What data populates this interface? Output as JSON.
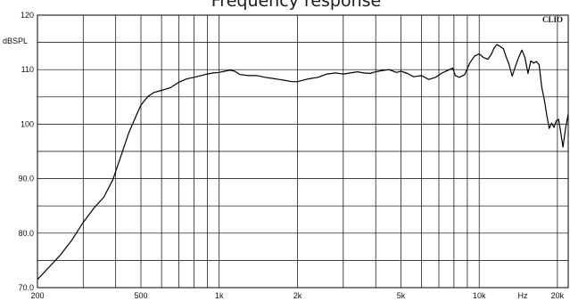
{
  "chart_data": {
    "type": "line",
    "title": "Frequency response",
    "ylabel": "dBSPL",
    "xlabel": "Hz",
    "brand": "CLIO",
    "x_scale": "log",
    "xlim": [
      200,
      22000
    ],
    "ylim": [
      70,
      120
    ],
    "grid": true,
    "x_ticks": [
      {
        "value": 200,
        "label": "200"
      },
      {
        "value": 500,
        "label": "500"
      },
      {
        "value": 1000,
        "label": "1k"
      },
      {
        "value": 2000,
        "label": "2k"
      },
      {
        "value": 5000,
        "label": "5k"
      },
      {
        "value": 10000,
        "label": "10k"
      },
      {
        "value": 20000,
        "label": "20k"
      }
    ],
    "x_gridlines": [
      200,
      300,
      400,
      500,
      600,
      700,
      800,
      900,
      1000,
      2000,
      3000,
      4000,
      5000,
      6000,
      7000,
      8000,
      9000,
      10000,
      20000
    ],
    "y_ticks": [
      {
        "value": 70,
        "label": "70.0"
      },
      {
        "value": 80,
        "label": "80.0"
      },
      {
        "value": 90,
        "label": "90.0"
      },
      {
        "value": 100,
        "label": "100"
      },
      {
        "value": 110,
        "label": "110"
      },
      {
        "value": 120,
        "label": "120"
      }
    ],
    "y_gridlines": [
      70,
      75,
      80,
      85,
      90,
      95,
      100,
      105,
      110,
      115,
      120
    ],
    "series": [
      {
        "color": "#000000",
        "x": [
          200,
          220,
          245,
          270,
          300,
          330,
          360,
          390,
          420,
          450,
          480,
          500,
          530,
          560,
          600,
          650,
          700,
          750,
          800,
          850,
          900,
          950,
          1000,
          1050,
          1100,
          1150,
          1200,
          1300,
          1400,
          1500,
          1600,
          1700,
          1800,
          1900,
          2000,
          2200,
          2400,
          2600,
          2800,
          3000,
          3200,
          3400,
          3600,
          3800,
          4000,
          4200,
          4500,
          4800,
          5000,
          5300,
          5600,
          6000,
          6400,
          6800,
          7200,
          7600,
          7900,
          8100,
          8400,
          8800,
          9200,
          9600,
          10000,
          10400,
          10800,
          11100,
          11400,
          11700,
          12000,
          12400,
          12700,
          13000,
          13400,
          13800,
          14200,
          14600,
          15000,
          15400,
          15800,
          16200,
          16600,
          17000,
          17400,
          17800,
          18200,
          18600,
          19000,
          19400,
          19800,
          20200,
          20600,
          21000,
          21500,
          22000
        ],
        "y": [
          71.5,
          73.6,
          76.0,
          78.6,
          82.0,
          84.6,
          86.6,
          89.8,
          94.3,
          98.5,
          101.6,
          103.5,
          105.0,
          105.8,
          106.2,
          106.7,
          107.7,
          108.3,
          108.6,
          108.9,
          109.2,
          109.4,
          109.5,
          109.7,
          109.9,
          109.7,
          109.1,
          108.9,
          108.9,
          108.6,
          108.4,
          108.2,
          108.0,
          107.8,
          107.8,
          108.3,
          108.6,
          109.2,
          109.4,
          109.2,
          109.4,
          109.6,
          109.4,
          109.3,
          109.6,
          109.8,
          110.0,
          109.5,
          109.7,
          109.3,
          108.7,
          108.9,
          108.2,
          108.6,
          109.4,
          109.9,
          110.3,
          108.9,
          108.6,
          109.1,
          111.2,
          112.5,
          112.9,
          112.2,
          111.9,
          112.7,
          113.9,
          114.6,
          114.3,
          113.8,
          112.3,
          111.1,
          108.8,
          110.7,
          112.3,
          113.6,
          112.2,
          109.3,
          111.6,
          111.2,
          111.5,
          110.9,
          106.8,
          104.5,
          101.6,
          99.2,
          100.2,
          99.4,
          100.6,
          100.9,
          98.4,
          95.8,
          99.3,
          101.9
        ]
      }
    ]
  }
}
